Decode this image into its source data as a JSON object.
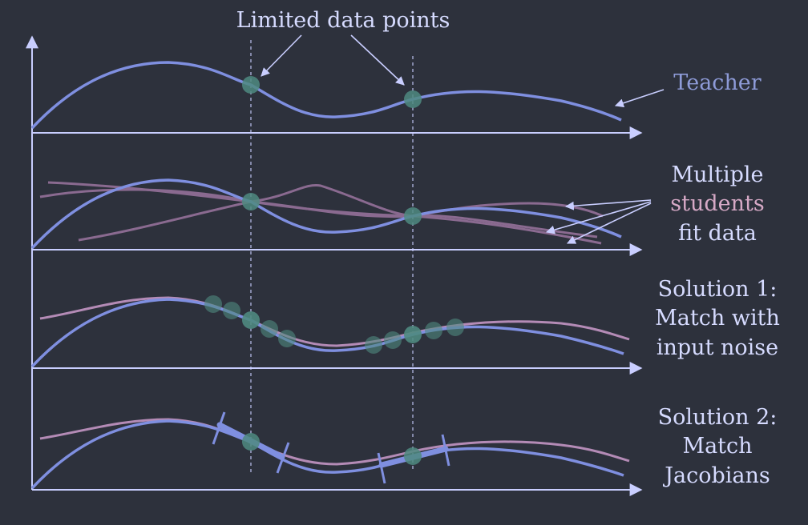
{
  "labels": {
    "limited_data_points": "Limited data points",
    "teacher": "Teacher",
    "multiple": "Multiple",
    "students": "students",
    "fit_data": "fit data",
    "solution1_line1": "Solution 1:",
    "solution1_line2": "Match with",
    "solution1_line3": "input noise",
    "solution2_line1": "Solution 2:",
    "solution2_line2": "Match",
    "solution2_line3": "Jacobians"
  },
  "colors": {
    "background": "#2d313c",
    "axis": "#c9ceff",
    "teacher_curve": "#7f8fe0",
    "student_curve": "#b48bb6",
    "student_curve_faint": "#8a6a90",
    "data_point": "#4f8a80",
    "label_text": "#d6dbff",
    "teacher_label": "#8e9bd8",
    "students_word": "#d6a9c6"
  }
}
